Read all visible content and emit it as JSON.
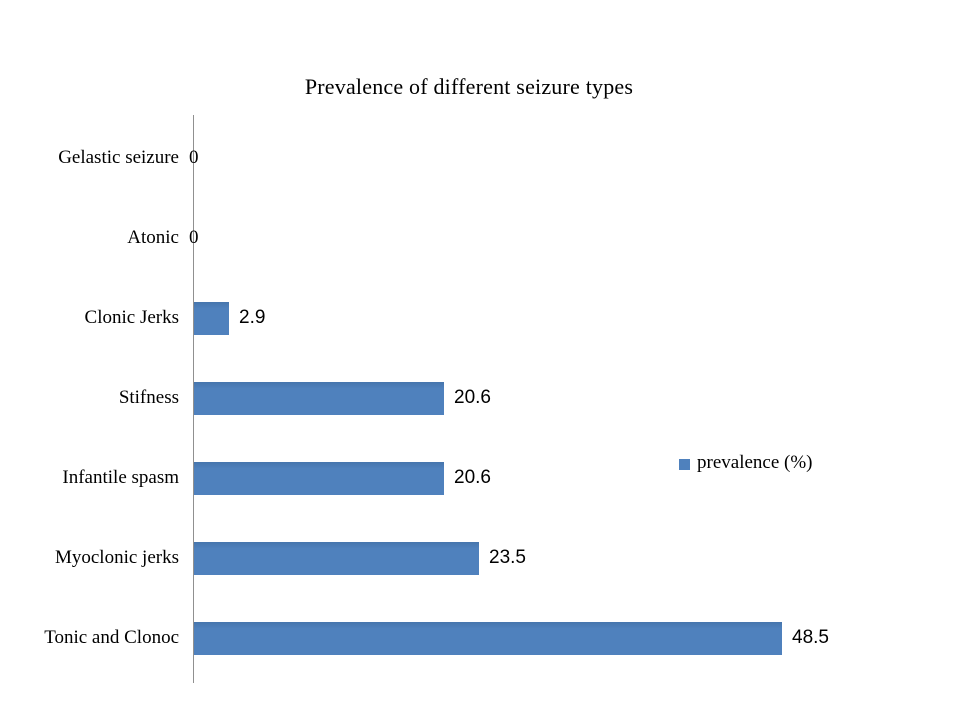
{
  "background": "#ffffff",
  "chart_data": {
    "type": "bar",
    "orientation": "horizontal",
    "title": "Prevalence of different seizure types",
    "categories": [
      "Gelastic seizure",
      "Atonic",
      "Clonic Jerks",
      "Stifness",
      "Infantile spasm",
      "Myoclonic jerks",
      "Tonic and Clonoc"
    ],
    "values": [
      0,
      0,
      2.9,
      20.6,
      20.6,
      23.5,
      48.5
    ],
    "value_labels": [
      "0",
      "0",
      "2.9",
      "20.6",
      "20.6",
      "23.5",
      "48.5"
    ],
    "series": [
      {
        "name": "prevalence (%)",
        "values": [
          0,
          0,
          2.9,
          20.6,
          20.6,
          23.5,
          48.5
        ]
      }
    ],
    "legend": {
      "label": "prevalence (%)",
      "position": "right",
      "marker": "square"
    },
    "colors": {
      "bar": "#4F81BD",
      "axis_line": "#909090",
      "text": "#000000"
    },
    "xlabel": "",
    "ylabel": "",
    "xlim": [
      0,
      55
    ],
    "grid": false,
    "value_labels_shown": true
  }
}
